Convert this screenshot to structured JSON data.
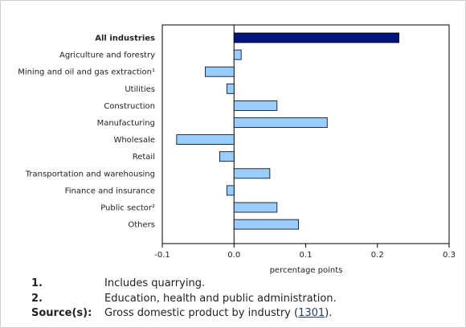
{
  "chart_data": {
    "type": "bar",
    "orientation": "horizontal",
    "categories": [
      "All industries",
      "Agriculture and forestry",
      "Mining and oil and gas extraction¹",
      "Utilities",
      "Construction",
      "Manufacturing",
      "Wholesale",
      "Retail",
      "Transportation and warehousing",
      "Finance and insurance",
      "Public sector²",
      "Others"
    ],
    "values": [
      0.23,
      0.01,
      -0.04,
      -0.01,
      0.06,
      0.13,
      -0.08,
      -0.02,
      0.05,
      -0.01,
      0.06,
      0.09
    ],
    "highlight_category": "All industries",
    "xlabel": "percentage points",
    "xlim": [
      -0.1,
      0.3
    ],
    "xticks": [
      -0.1,
      0.0,
      0.1,
      0.2,
      0.3
    ],
    "xtick_labels": [
      "-0.1",
      "0.0",
      "0.1",
      "0.2",
      "0.3"
    ],
    "grid": false,
    "colors": {
      "highlight": "#00137f",
      "bar": "#99ccff",
      "bar_stroke": "#000000"
    }
  },
  "notes": [
    {
      "key": "1.",
      "text": "Includes quarrying."
    },
    {
      "key": "2.",
      "text": "Education, health and public administration."
    }
  ],
  "source": {
    "key": "Source(s):",
    "text_before": "Gross domestic product by industry (",
    "link": "1301",
    "text_after": ")."
  }
}
